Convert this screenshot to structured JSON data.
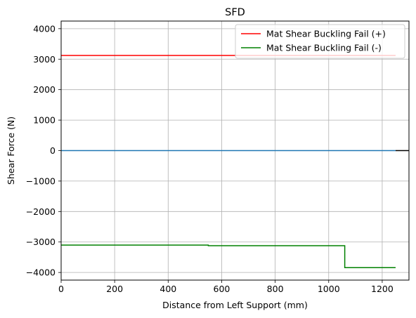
{
  "chart_data": {
    "type": "line",
    "title": "SFD",
    "xlabel": "Distance from Left Support (mm)",
    "ylabel": "Shear Force (N)",
    "xlim": [
      0,
      1300
    ],
    "ylim": [
      -4250,
      4250
    ],
    "xticks": [
      0,
      200,
      400,
      600,
      800,
      1000,
      1200
    ],
    "yticks": [
      -4000,
      -3000,
      -2000,
      -1000,
      0,
      1000,
      2000,
      3000,
      4000
    ],
    "grid": true,
    "legend_position": "top-right",
    "series": [
      {
        "name": "Mat Shear Buckling Fail (+)",
        "color": "#ff0000",
        "in_legend": true,
        "x": [
          0,
          1250
        ],
        "y": [
          3120,
          3120
        ]
      },
      {
        "name": "Mat Shear Buckling Fail (-)",
        "color": "#008000",
        "in_legend": true,
        "x": [
          0,
          550,
          550,
          1060,
          1060,
          1250
        ],
        "y": [
          -3100,
          -3100,
          -3120,
          -3120,
          -3840,
          -3840
        ]
      },
      {
        "name": "",
        "color": "#1f77b4",
        "in_legend": false,
        "x": [
          0,
          1250
        ],
        "y": [
          0,
          0
        ]
      },
      {
        "name": "",
        "color": "#000000",
        "in_legend": false,
        "x": [
          1250,
          1300
        ],
        "y": [
          0,
          0
        ]
      }
    ]
  }
}
